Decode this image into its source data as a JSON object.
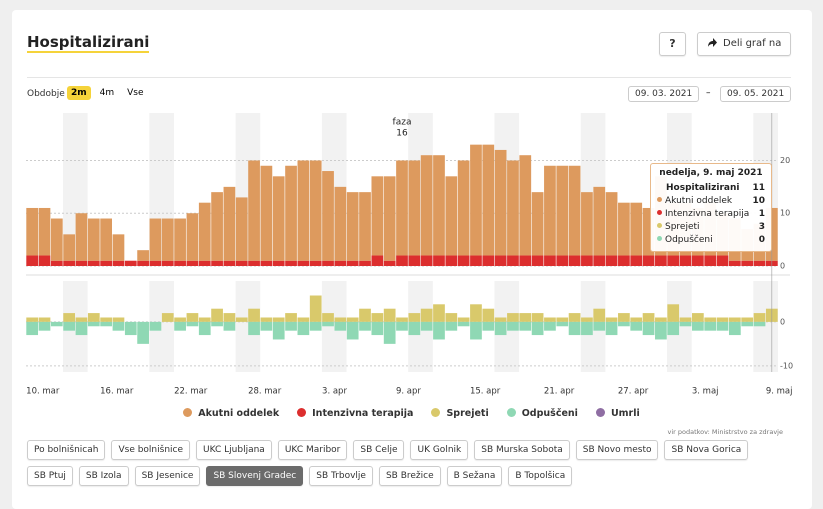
{
  "header": {
    "title": "Hospitalizirani",
    "help": "?",
    "share": "Deli graf na"
  },
  "controls": {
    "period_label": "Obdobje",
    "periods": [
      "2m",
      "4m",
      "Vse"
    ],
    "active_period": "2m",
    "date_from": "09. 03. 2021",
    "dash": "–",
    "date_to": "09. 05. 2021"
  },
  "chart_data": [
    {
      "type": "bar",
      "stacked": true,
      "stack_order": "reverse",
      "ylim": [
        0,
        29
      ],
      "yticks": [
        0,
        10,
        20
      ],
      "grid": true,
      "series": [
        {
          "name": "Akutni oddelek",
          "color": "#dd9a5e",
          "values": [
            9,
            9,
            8,
            5,
            9,
            8,
            8,
            5,
            0,
            2,
            8,
            8,
            8,
            9,
            11,
            13,
            14,
            12,
            19,
            18,
            16,
            18,
            19,
            19,
            17,
            14,
            13,
            13,
            15,
            16,
            18,
            18,
            19,
            19,
            15,
            18,
            21,
            21,
            20,
            18,
            19,
            12,
            17,
            17,
            17,
            12,
            13,
            12,
            10,
            10,
            9,
            15,
            10,
            10,
            9,
            10,
            8,
            8,
            6,
            7,
            10
          ]
        },
        {
          "name": "Intenzivna terapija",
          "color": "#dc2e2e",
          "values": [
            2,
            2,
            1,
            1,
            1,
            1,
            1,
            1,
            1,
            1,
            1,
            1,
            1,
            1,
            1,
            1,
            1,
            1,
            1,
            1,
            1,
            1,
            1,
            1,
            1,
            1,
            1,
            1,
            2,
            1,
            2,
            2,
            2,
            2,
            2,
            2,
            2,
            2,
            2,
            2,
            2,
            2,
            2,
            2,
            2,
            2,
            2,
            2,
            2,
            2,
            2,
            2,
            2,
            2,
            2,
            2,
            2,
            1,
            1,
            1,
            1
          ]
        }
      ],
      "annotations": [
        {
          "text": "faza",
          "value": 16,
          "category": "9. apr"
        }
      ]
    },
    {
      "type": "bar",
      "stacked": true,
      "stack_order": "forward",
      "ylim": [
        -11.4,
        9.3
      ],
      "yticks": [
        -10,
        0
      ],
      "grid": true,
      "categories": [
        "10. mar",
        null,
        null,
        null,
        null,
        null,
        "16. mar",
        null,
        null,
        null,
        null,
        null,
        "22. mar",
        null,
        null,
        null,
        null,
        null,
        "28. mar",
        null,
        null,
        null,
        null,
        null,
        "3. apr",
        null,
        null,
        null,
        null,
        null,
        "9. apr",
        null,
        null,
        null,
        null,
        null,
        "15. apr",
        null,
        null,
        null,
        null,
        null,
        "21. apr",
        null,
        null,
        null,
        null,
        null,
        "27. apr",
        null,
        null,
        null,
        null,
        null,
        "3. maj",
        null,
        null,
        null,
        null,
        null,
        "9. maj"
      ],
      "series": [
        {
          "name": "Sprejeti",
          "color": "#d9c96b",
          "values": [
            1,
            1,
            0,
            2,
            1,
            2,
            1,
            1,
            0,
            0,
            0,
            2,
            1,
            2,
            1,
            3,
            2,
            1,
            3,
            1,
            1,
            2,
            1,
            6,
            2,
            1,
            1,
            3,
            2,
            3,
            1,
            2,
            3,
            4,
            2,
            1,
            4,
            3,
            1,
            2,
            2,
            2,
            1,
            1,
            2,
            1,
            3,
            1,
            2,
            1,
            2,
            1,
            4,
            1,
            2,
            1,
            1,
            1,
            1,
            2,
            3
          ]
        },
        {
          "name": "Odpuščeni",
          "color": "#8fd8b4",
          "values": [
            -3,
            -2,
            -1,
            -2,
            -3,
            -1,
            -1,
            -2,
            -3,
            -5,
            -2,
            0,
            -2,
            -1,
            -3,
            -1,
            -2,
            0,
            -3,
            -2,
            -4,
            -2,
            -3,
            -2,
            -1,
            -2,
            -4,
            -2,
            -3,
            -5,
            -2,
            -3,
            -2,
            -4,
            -2,
            -1,
            -4,
            -2,
            -3,
            -2,
            -2,
            -3,
            -2,
            -1,
            -3,
            -3,
            -2,
            -3,
            -1,
            -2,
            -3,
            -4,
            -3,
            -1,
            -2,
            -2,
            -2,
            -3,
            -1,
            -1,
            0
          ]
        },
        {
          "name": "Umrli",
          "color": "#8f6ea3",
          "values": [
            0,
            0,
            0,
            0,
            0,
            0,
            0,
            0,
            0,
            0,
            0,
            0,
            0,
            0,
            0,
            0,
            0,
            0,
            0,
            0,
            0,
            0,
            0,
            0,
            0,
            0,
            0,
            0,
            0,
            0,
            0,
            0,
            0,
            0,
            0,
            0,
            0,
            0,
            0,
            0,
            0,
            0,
            0,
            0,
            0,
            0,
            0,
            0,
            0,
            0,
            0,
            0,
            0,
            0,
            0,
            0,
            0,
            0,
            0,
            0,
            0
          ]
        }
      ]
    }
  ],
  "tooltip": {
    "title": "nedelja, 9. maj 2021",
    "category": "9. maj",
    "rows": [
      {
        "name": "Hospitalizirani",
        "value": 11
      },
      {
        "name": "Akutni oddelek",
        "value": 10,
        "color": "#dd9a5e"
      },
      {
        "name": "Intenzivna terapija",
        "value": 1,
        "color": "#dc2e2e"
      },
      {
        "name": "Sprejeti",
        "value": 3,
        "color": "#d9c96b"
      },
      {
        "name": "Odpuščeni",
        "value": 0,
        "color": "#8fd8b4"
      }
    ]
  },
  "source": "vir podatkov: Ministrstvo za zdravje",
  "hospitals": [
    "Po bolnišnicah",
    "Vse bolnišnice",
    "UKC Ljubljana",
    "UKC Maribor",
    "SB Celje",
    "UK Golnik",
    "SB Murska Sobota",
    "SB Novo mesto",
    "SB Nova Gorica",
    "SB Ptuj",
    "SB Izola",
    "SB Jesenice",
    "SB Slovenj Gradec",
    "SB Trbovlje",
    "SB Brežice",
    "B Sežana",
    "B Topolšica"
  ],
  "active_hospital": "SB Slovenj Gradec"
}
